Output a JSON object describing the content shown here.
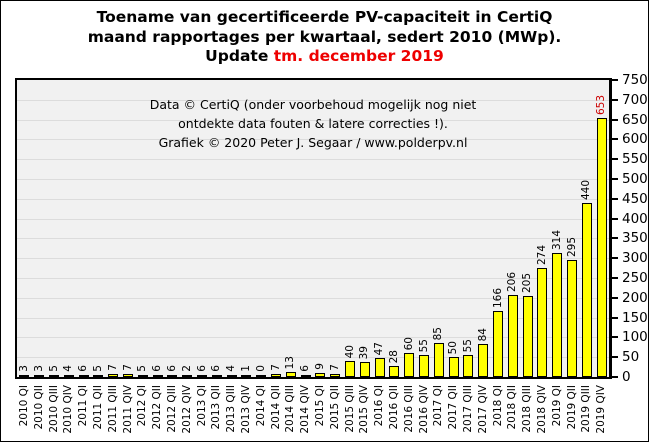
{
  "title": {
    "line1": "Toename van gecertificeerde PV-capaciteit in CertiQ",
    "line2": "maand rapportages per kwartaal, sedert 2010 (MWp).",
    "line3_black": "Update ",
    "line3_red": "tm. december 2019"
  },
  "annotation": {
    "line1": "Data © CertiQ (onder voorbehoud mogelijk  nog niet",
    "line2": "ontdekte data fouten & latere correcties !).",
    "line3": "Grafiek  © 2020 Peter J. Segaar / www.polderpv.nl"
  },
  "chart_data": {
    "type": "bar",
    "title": "Toename van gecertificeerde PV-capaciteit in CertiQ maand rapportages per kwartaal, sedert 2010 (MWp). Update tm. december 2019",
    "categories": [
      "2010 QI",
      "2010 QII",
      "2010 QIII",
      "2010 QIV",
      "2011 QI",
      "2011 QII",
      "2011 QIII",
      "2011 QIV",
      "2012 QI",
      "2012 QII",
      "2012 QIII",
      "2012 QIV",
      "2013 QI",
      "2013 QII",
      "2013 QIII",
      "2013 QIV",
      "2014 QI",
      "2014 QII",
      "2014 QIII",
      "2014 QIV",
      "2015 QI",
      "2015 QII",
      "2015 QIII",
      "2015 QIV",
      "2016 QI",
      "2016 QII",
      "2016 QIII",
      "2016 QIV",
      "2017 QI",
      "2017 QII",
      "2017 QIII",
      "2017 QIV",
      "2018 QI",
      "2018 QII",
      "2018 QIII",
      "2018 QIV",
      "2019 QI",
      "2019 QII",
      "2019 QIII",
      "2019 QIV"
    ],
    "values": [
      3,
      3,
      5,
      4,
      6,
      5,
      7,
      7,
      5,
      6,
      6,
      2,
      6,
      6,
      4,
      1,
      0,
      7,
      13,
      6,
      9,
      7,
      40,
      39,
      47,
      28,
      60,
      55,
      85,
      50,
      55,
      84,
      166,
      206,
      205,
      274,
      314,
      295,
      440,
      653
    ],
    "value_labels": true,
    "xlabel": "",
    "ylabel": "",
    "ylim": [
      0,
      750
    ],
    "ytick_step": 50,
    "yaxis_side": "right",
    "grid": "horizontal",
    "legend": "none",
    "bar_color": "#ffff00",
    "bar_border_color": "#000000",
    "plot_bg_color": "#f1f1f1",
    "grid_color": "#dcdcdc",
    "value_label_color": "#000000",
    "last_value_label_color": "#cc0000",
    "title_accent_color": "#ee0000"
  }
}
